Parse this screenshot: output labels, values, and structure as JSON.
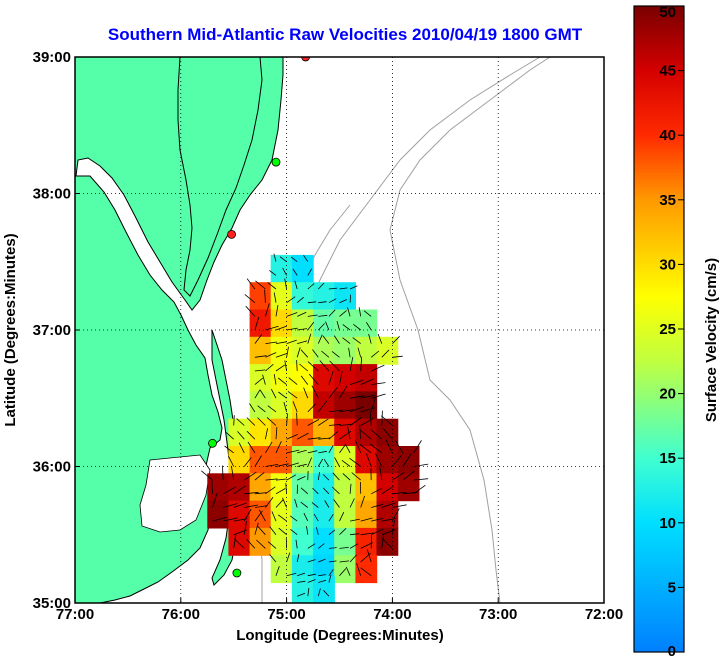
{
  "chart_data": {
    "type": "heatmap",
    "title": "Southern Mid-Atlantic Raw Velocities 2010/04/19 1800 GMT",
    "xlabel": "Longitude (Degrees:Minutes)",
    "ylabel": "Latitude (Degrees:Minutes)",
    "xlim": [
      -77,
      -72
    ],
    "ylim": [
      35,
      39
    ],
    "x_ticks": [
      {
        "value": -77,
        "label": "77:00"
      },
      {
        "value": -76,
        "label": "76:00"
      },
      {
        "value": -75,
        "label": "75:00"
      },
      {
        "value": -74,
        "label": "74:00"
      },
      {
        "value": -73,
        "label": "73:00"
      },
      {
        "value": -72,
        "label": "72:00"
      }
    ],
    "y_ticks": [
      {
        "value": 39,
        "label": "39:00"
      },
      {
        "value": 38,
        "label": "38:00"
      },
      {
        "value": 37,
        "label": "37:00"
      },
      {
        "value": 36,
        "label": "36:00"
      },
      {
        "value": 35,
        "label": "35:00"
      }
    ],
    "grid": true,
    "colorbar": {
      "label": "Surface Velocity (cm/s)",
      "range": [
        0,
        50
      ],
      "ticks": [
        "0",
        "5",
        "10",
        "15",
        "20",
        "25",
        "30",
        "35",
        "40",
        "45",
        "50"
      ]
    },
    "colors": {
      "land": "#55ffaa",
      "coast": "#000000",
      "bathymetry": "#a0a0a0",
      "title": "#0000ff",
      "site_active": "#00ff00",
      "site_inactive": "#ff2020"
    },
    "sites": [
      {
        "lon": -74.82,
        "lat": 39.0,
        "status": "inactive"
      },
      {
        "lon": -75.1,
        "lat": 38.23,
        "status": "active"
      },
      {
        "lon": -75.52,
        "lat": 37.7,
        "status": "inactive"
      },
      {
        "lon": -75.7,
        "lat": 36.17,
        "status": "active"
      },
      {
        "lon": -75.47,
        "lat": 35.22,
        "status": "active"
      }
    ],
    "velocity_grid": {
      "lon": [
        -75.85,
        -75.65,
        -75.45,
        -75.25,
        -75.05,
        -74.85,
        -74.65,
        -74.45,
        -74.25,
        -74.05,
        -73.85
      ],
      "lat": [
        37.45,
        37.25,
        37.05,
        36.85,
        36.65,
        36.45,
        36.25,
        36.05,
        35.85,
        35.65,
        35.45,
        35.25,
        35.1
      ],
      "speed_cm_s": [
        [
          null,
          null,
          null,
          null,
          13,
          10,
          null,
          null,
          null,
          null,
          null
        ],
        [
          null,
          null,
          null,
          39,
          25,
          14,
          13,
          11,
          null,
          null,
          null
        ],
        [
          null,
          null,
          null,
          42,
          30,
          22,
          17,
          18,
          18,
          null,
          null
        ],
        [
          null,
          null,
          null,
          32,
          26,
          24,
          21,
          20,
          22,
          24,
          null
        ],
        [
          null,
          null,
          null,
          24,
          26,
          27,
          44,
          45,
          46,
          null,
          null
        ],
        [
          null,
          null,
          null,
          22,
          24,
          30,
          46,
          48,
          50,
          null,
          null
        ],
        [
          null,
          null,
          24,
          29,
          34,
          38,
          33,
          44,
          47,
          49,
          null
        ],
        [
          null,
          null,
          30,
          38,
          38,
          21,
          15,
          24,
          44,
          48,
          49
        ],
        [
          null,
          48,
          47,
          34,
          26,
          17,
          12,
          22,
          32,
          45,
          48
        ],
        [
          null,
          49,
          44,
          38,
          25,
          16,
          12,
          22,
          34,
          47,
          null
        ],
        [
          null,
          null,
          44,
          35,
          24,
          15,
          10,
          18,
          41,
          49,
          null
        ],
        [
          null,
          null,
          null,
          null,
          22,
          12,
          9,
          20,
          40,
          null,
          null
        ],
        [
          null,
          null,
          null,
          null,
          null,
          13,
          11,
          null,
          null,
          null,
          null
        ]
      ]
    }
  }
}
